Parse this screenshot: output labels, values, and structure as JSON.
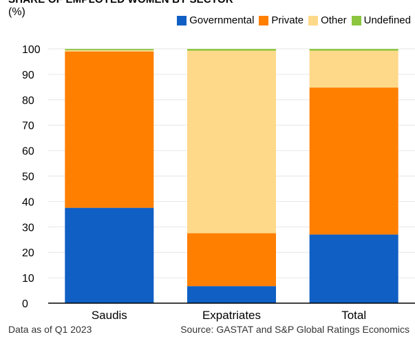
{
  "header": {
    "title": "SHARE OF EMPLOYED WOMEN BY SECTOR",
    "unit": "(%)"
  },
  "legend": [
    {
      "label": "Governmental",
      "color": "#0f5fc4"
    },
    {
      "label": "Private",
      "color": "#ff7f00"
    },
    {
      "label": "Other",
      "color": "#ffd98a"
    },
    {
      "label": "Undefined",
      "color": "#8cc63f"
    }
  ],
  "footer": {
    "note": "Data as of Q1 2023",
    "source": "Source: GASTAT and S&P Global Ratings Economics"
  },
  "chart_data": {
    "type": "bar",
    "stacked": true,
    "title": "SHARE OF EMPLOYED WOMEN BY SECTOR",
    "ylabel": "(%)",
    "categories": [
      "Saudis",
      "Expatriates",
      "Total"
    ],
    "series": [
      {
        "name": "Governmental",
        "color": "#0f5fc4",
        "values": [
          37.5,
          6.7,
          27.0
        ]
      },
      {
        "name": "Private",
        "color": "#ff7f00",
        "values": [
          61.5,
          20.8,
          57.8
        ]
      },
      {
        "name": "Other",
        "color": "#ffd98a",
        "values": [
          0.5,
          71.8,
          14.5
        ]
      },
      {
        "name": "Undefined",
        "color": "#8cc63f",
        "values": [
          0.5,
          0.7,
          0.7
        ]
      }
    ],
    "ylim": [
      0,
      100
    ],
    "yticks": [
      0,
      10,
      20,
      30,
      40,
      50,
      60,
      70,
      80,
      90,
      100
    ],
    "grid": true,
    "legend_position": "top-right"
  }
}
